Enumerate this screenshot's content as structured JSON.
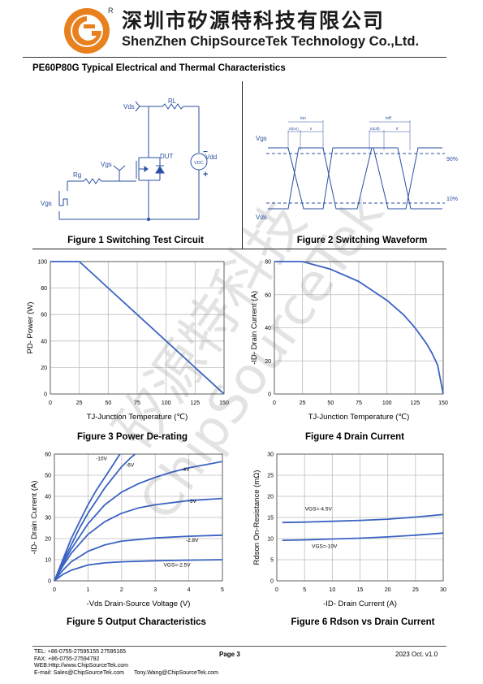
{
  "header": {
    "company_cn": "深圳市矽源特科技有限公司",
    "company_en": "ShenZhen ChipSourceTek Technology Co.,Ltd.",
    "logo_reg": "R"
  },
  "doc_title": "PE60P80G Typical Electrical and Thermal Characteristics",
  "watermark": {
    "cn": "矽源特科技",
    "en": "ChipSourceTek"
  },
  "fig1": {
    "caption": "Figure 1 Switching Test Circuit",
    "labels": {
      "vds": "Vds",
      "rl": "RL",
      "dut": "DUT",
      "vdd": "Vdd",
      "vgs": "Vgs",
      "rg": "Rg",
      "vgs_in": "Vgs",
      "vdc": "VDC",
      "minus": "−",
      "plus": "+"
    }
  },
  "fig2": {
    "caption": "Figure 2 Switching Waveform",
    "labels": {
      "vgs": "Vgs",
      "vds": "Vds",
      "p90": "90%",
      "p10": "10%",
      "ton": "ton",
      "toff": "toff",
      "tdon": "td(on)",
      "tr": "tr",
      "tdoff": "td(off)",
      "tf": "tf"
    }
  },
  "fig3": {
    "caption": "Figure 3 Power De-rating",
    "chart_data": {
      "type": "line",
      "xlabel": "TJ-Junction Temperature (℃)",
      "ylabel": "PD- Power (W)",
      "xlim": [
        0,
        150
      ],
      "ylim": [
        0,
        100
      ],
      "x_ticks": [
        "0",
        "25",
        "50",
        "75",
        "100",
        "125",
        "150"
      ],
      "y_ticks": [
        "0",
        "20",
        "40",
        "60",
        "80",
        "100"
      ],
      "series": [
        {
          "x": [
            0,
            25,
            150
          ],
          "y": [
            100,
            100,
            0
          ]
        }
      ]
    }
  },
  "fig4": {
    "caption": "Figure 4 Drain Current",
    "chart_data": {
      "type": "line",
      "xlabel": "TJ-Junction Temperature (℃)",
      "ylabel": "-ID- Drain Current (A)",
      "xlim": [
        0,
        150
      ],
      "ylim": [
        0,
        80
      ],
      "x_ticks": [
        "0",
        "25",
        "50",
        "75",
        "100",
        "125",
        "150"
      ],
      "y_ticks": [
        "0",
        "20",
        "40",
        "60",
        "80"
      ],
      "series": [
        {
          "x": [
            0,
            25,
            50,
            75,
            100,
            115,
            125,
            135,
            140,
            145,
            150
          ],
          "y": [
            80,
            80,
            75.4,
            68.0,
            56.6,
            47.7,
            40.0,
            30.6,
            24.8,
            17.4,
            0
          ]
        }
      ]
    }
  },
  "fig5": {
    "caption": "Figure 5 Output Characteristics",
    "chart_data": {
      "type": "line",
      "xlabel": "-Vds Drain-Source Voltage (V)",
      "ylabel": "-ID- Drain Current (A)",
      "xlim": [
        0,
        5
      ],
      "ylim": [
        0,
        60
      ],
      "x_ticks": [
        "0",
        "1",
        "2",
        "3",
        "4",
        "5"
      ],
      "y_ticks": [
        "0",
        "10",
        "20",
        "30",
        "40",
        "50",
        "60"
      ],
      "series": [
        {
          "name": "-10V",
          "x": [
            0,
            0.25,
            0.5,
            0.75,
            1.0,
            1.25,
            1.5,
            1.75,
            1.95
          ],
          "y": [
            0,
            10,
            20,
            28,
            36,
            43,
            49,
            55,
            60
          ]
        },
        {
          "name": "-6V",
          "x": [
            0,
            0.25,
            0.5,
            0.75,
            1.0,
            1.25,
            1.5,
            1.75,
            2.0,
            2.25,
            2.4
          ],
          "y": [
            0,
            9,
            17,
            25,
            32,
            38,
            44,
            49,
            54,
            58,
            60
          ]
        },
        {
          "name": "-4V",
          "x": [
            0,
            0.25,
            0.5,
            1.0,
            1.5,
            2.0,
            2.5,
            3.0,
            3.5,
            4.0,
            4.5,
            5.0
          ],
          "y": [
            0,
            8,
            15,
            27,
            36,
            42,
            46,
            49,
            51.5,
            53.5,
            55,
            56.5
          ]
        },
        {
          "name": "-3V",
          "x": [
            0,
            0.25,
            0.5,
            1.0,
            1.5,
            2.0,
            2.5,
            3.0,
            4.0,
            5.0
          ],
          "y": [
            0,
            7,
            13,
            22,
            28,
            32,
            34.5,
            36,
            38,
            39
          ]
        },
        {
          "name": "-2.8V",
          "x": [
            0,
            0.25,
            0.5,
            1.0,
            1.5,
            2.0,
            3.0,
            4.0,
            5.0
          ],
          "y": [
            0,
            5,
            9,
            14,
            17,
            18.8,
            20.3,
            21.1,
            21.6
          ]
        },
        {
          "name": "VGS=-2.5V",
          "x": [
            0,
            0.25,
            0.5,
            1.0,
            1.5,
            2.0,
            3.0,
            4.0,
            5.0
          ],
          "y": [
            0,
            3,
            5,
            7.5,
            8.5,
            9.0,
            9.5,
            9.8,
            10
          ]
        }
      ]
    }
  },
  "fig6": {
    "caption": "Figure 6 Rdson vs Drain Current",
    "chart_data": {
      "type": "line",
      "xlabel": "-ID- Drain Current (A)",
      "ylabel": "Rdson On-Resistance (mΩ)",
      "xlim": [
        0,
        30
      ],
      "ylim": [
        0,
        30
      ],
      "x_ticks": [
        "0",
        "5",
        "10",
        "15",
        "20",
        "25",
        "30"
      ],
      "y_ticks": [
        "0",
        "5",
        "10",
        "15",
        "20",
        "25",
        "30"
      ],
      "series": [
        {
          "name": "VGS=-4.5V",
          "x": [
            1,
            5,
            10,
            15,
            20,
            25,
            30
          ],
          "y": [
            13.8,
            13.9,
            14.1,
            14.3,
            14.6,
            15.1,
            15.7
          ]
        },
        {
          "name": "VGS=-10V",
          "x": [
            1,
            5,
            10,
            15,
            20,
            25,
            30
          ],
          "y": [
            9.6,
            9.7,
            9.9,
            10.1,
            10.4,
            10.8,
            11.3
          ]
        }
      ]
    }
  },
  "footer": {
    "tel": "TEL: +86-0755-27595155 27595165",
    "fax": "FAX: +86-0755-27594792",
    "web": "WEB:Http://www.ChipSourceTek.com",
    "email": "E-mail: Sales@ChipSourceTek.com",
    "email2": "Tony.Wang@ChipSourceTek.com",
    "page": "Page 3",
    "date": "2023 Oct. v1.0"
  }
}
